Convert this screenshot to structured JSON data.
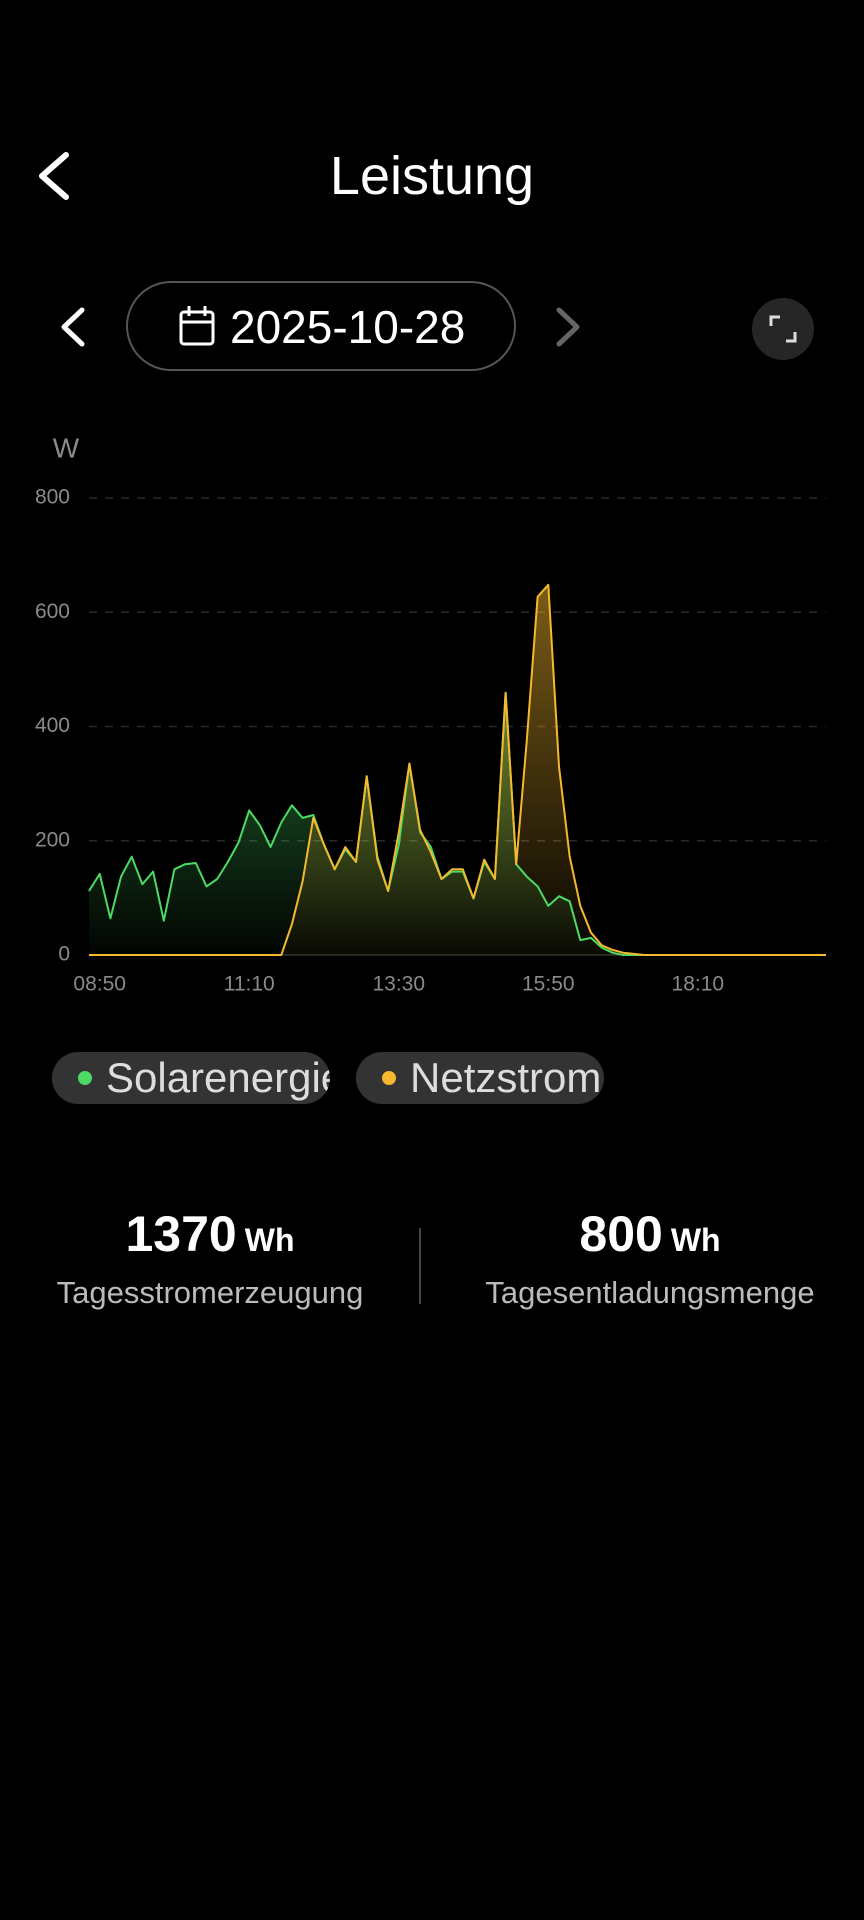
{
  "header": {
    "title": "Leistung"
  },
  "date": "2025-10-28",
  "chart_data": {
    "type": "area-line",
    "y_label": "W",
    "categories": [
      null,
      "08:50",
      null,
      null,
      null,
      null,
      null,
      null,
      null,
      null,
      null,
      null,
      null,
      null,
      null,
      "11:10",
      null,
      null,
      null,
      null,
      null,
      null,
      null,
      null,
      null,
      null,
      null,
      null,
      null,
      "13:30",
      null,
      null,
      null,
      null,
      null,
      null,
      null,
      null,
      null,
      null,
      null,
      null,
      null,
      "15:50",
      null,
      null,
      null,
      null,
      null,
      null,
      null,
      null,
      null,
      null,
      null,
      null,
      null,
      "18:10",
      null,
      null,
      null,
      null,
      null,
      null,
      null,
      null,
      null,
      null,
      null,
      null
    ],
    "series": [
      {
        "name": "Solarenergie",
        "color": "#4cd964",
        "values": [
          112,
          142,
          64,
          137,
          172,
          124,
          146,
          60,
          150,
          159,
          161,
          120,
          133,
          163,
          197,
          253,
          227,
          189,
          232,
          262,
          240,
          245,
          193,
          150,
          185,
          163,
          313,
          172,
          112,
          193,
          335,
          215,
          189,
          133,
          146,
          146,
          99,
          163,
          133,
          459,
          159,
          137,
          120,
          86,
          103,
          94,
          26,
          30,
          13,
          4,
          0,
          0,
          0,
          0,
          0,
          0,
          0,
          0,
          0,
          0,
          0,
          0,
          0,
          0,
          0,
          0,
          0,
          0,
          0,
          0
        ]
      },
      {
        "name": "Netzstrom",
        "color": "#f5b82e",
        "values": [
          0,
          0,
          0,
          0,
          0,
          0,
          0,
          0,
          0,
          0,
          0,
          0,
          0,
          0,
          0,
          0,
          0,
          0,
          0,
          54,
          129,
          240,
          193,
          150,
          189,
          163,
          313,
          167,
          112,
          215,
          335,
          219,
          180,
          133,
          150,
          150,
          99,
          167,
          133,
          459,
          159,
          378,
          627,
          648,
          330,
          172,
          86,
          39,
          17,
          9,
          4,
          2,
          0,
          0,
          0,
          0,
          0,
          0,
          0,
          0,
          0,
          0,
          0,
          0,
          0,
          0,
          0,
          0,
          0,
          0
        ]
      }
    ],
    "ylim": [
      0,
      800
    ],
    "yticks": [
      0,
      200,
      400,
      600,
      800
    ],
    "grid": true
  },
  "stats": [
    {
      "value": 1370,
      "unit": "Wh",
      "label": "Tagesstromerzeugung"
    },
    {
      "value": 800,
      "unit": "Wh",
      "label": "Tagesentladungsmenge"
    }
  ]
}
